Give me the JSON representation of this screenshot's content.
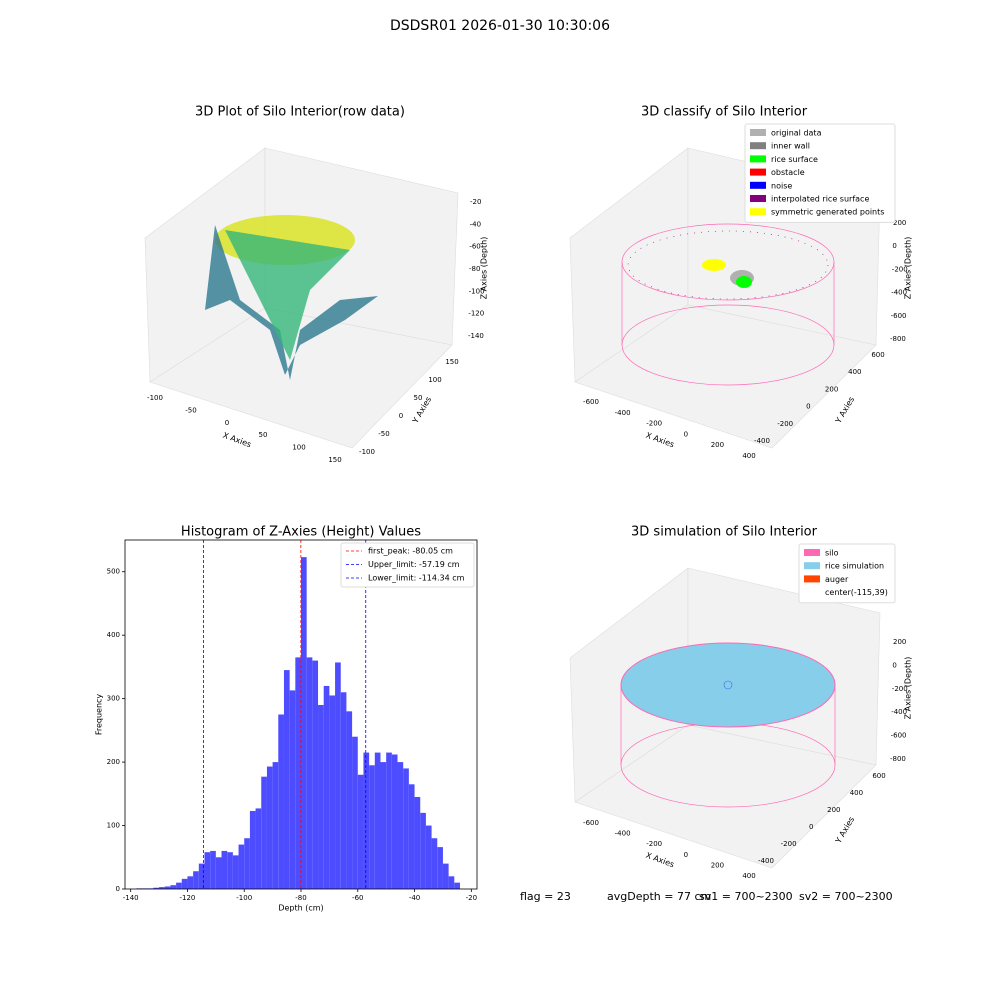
{
  "title": "DSDSR01 2026-01-30 10:30:06",
  "status": [
    "flag = 23",
    "avgDepth = 77 cm",
    "sv1 = 700~2300",
    "sv2 = 700~2300"
  ],
  "chart_data": [
    {
      "type": "scatter3d",
      "title": "3D Plot of Silo Interior(row data)",
      "xlabel": "X Axies",
      "ylabel": "Y Axies",
      "zlabel": "Z Axies (Depth)",
      "xlim": [
        -100,
        150
      ],
      "xticks": [
        -100,
        -50,
        0,
        50,
        100,
        150
      ],
      "ylim": [
        -100,
        150
      ],
      "yticks": [
        -100,
        -50,
        0,
        50,
        100,
        150
      ],
      "zlim": [
        -20,
        -140
      ],
      "zticks": [
        -20,
        -40,
        -60,
        -80,
        -100,
        -120,
        -140
      ]
    },
    {
      "type": "scatter3d",
      "title": "3D classify of Silo Interior",
      "xlabel": "X Axies",
      "ylabel": "Y Axies",
      "zlabel": "Z Axies (Depth)",
      "xlim": [
        -600,
        400
      ],
      "xticks": [
        -600,
        -400,
        -200,
        0,
        200,
        400
      ],
      "ylim": [
        -400,
        600
      ],
      "yticks": [
        -400,
        -200,
        0,
        200,
        400,
        600
      ],
      "zlim": [
        200,
        -800
      ],
      "zticks": [
        200,
        0,
        -200,
        -400,
        -600,
        -800
      ],
      "legend": [
        {
          "name": "original data",
          "color": "#b0b0b0"
        },
        {
          "name": "inner wall",
          "color": "#808080"
        },
        {
          "name": "rice surface",
          "color": "#00ff00"
        },
        {
          "name": "obstacle",
          "color": "#ff0000"
        },
        {
          "name": "noise",
          "color": "#0000ff"
        },
        {
          "name": "interpolated rice surface",
          "color": "#800080"
        },
        {
          "name": "symmetric generated points",
          "color": "#ffff00"
        }
      ]
    },
    {
      "type": "histogram",
      "title": "Histogram of Z-Axies (Height) Values",
      "xlabel": "Depth (cm)",
      "ylabel": "Frequency",
      "color": "#4d4dff",
      "xlim": [
        -142,
        -18
      ],
      "xticks": [
        -140,
        -120,
        -100,
        -80,
        -60,
        -40,
        -20
      ],
      "ylim": [
        0,
        550
      ],
      "yticks": [
        0,
        100,
        200,
        300,
        400,
        500
      ],
      "bins": [
        -138,
        -136,
        -134,
        -132,
        -130,
        -128,
        -126,
        -124,
        -122,
        -120,
        -118,
        -116,
        -114,
        -112,
        -110,
        -108,
        -106,
        -104,
        -102,
        -100,
        -98,
        -96,
        -94,
        -92,
        -90,
        -88,
        -86,
        -84,
        -82,
        -80,
        -78,
        -76,
        -74,
        -72,
        -70,
        -68,
        -66,
        -64,
        -62,
        -60,
        -58,
        -56,
        -54,
        -52,
        -50,
        -48,
        -46,
        -44,
        -42,
        -40,
        -38,
        -36,
        -34,
        -32,
        -30,
        -28,
        -26,
        -24
      ],
      "counts": [
        1,
        1,
        1,
        2,
        3,
        4,
        6,
        10,
        16,
        20,
        28,
        40,
        58,
        60,
        50,
        60,
        58,
        53,
        70,
        80,
        123,
        127,
        177,
        193,
        200,
        275,
        345,
        313,
        365,
        523,
        365,
        360,
        290,
        320,
        305,
        357,
        310,
        280,
        240,
        180,
        215,
        195,
        215,
        200,
        215,
        212,
        200,
        190,
        165,
        145,
        120,
        100,
        80,
        66,
        40,
        20,
        10
      ],
      "lines": [
        {
          "label": "first_peak: -80.05 cm",
          "value": -80.05,
          "color": "#ff0000"
        },
        {
          "label": "Upper_limit: -57.19 cm",
          "value": -57.19,
          "color": "#0000ff"
        },
        {
          "label": "Lower_limit: -114.34 cm",
          "value": -114.34,
          "color": "#0000ff"
        }
      ]
    },
    {
      "type": "scatter3d",
      "title": "3D simulation of Silo Interior",
      "xlabel": "X Axies",
      "ylabel": "Y Axies",
      "zlabel": "Z Axies (Depth)",
      "xlim": [
        -600,
        400
      ],
      "xticks": [
        -600,
        -400,
        -200,
        0,
        200,
        400
      ],
      "ylim": [
        -400,
        600
      ],
      "yticks": [
        -400,
        -200,
        0,
        200,
        400,
        600
      ],
      "zlim": [
        200,
        -800
      ],
      "zticks": [
        200,
        0,
        -200,
        -400,
        -600,
        -800
      ],
      "legend": [
        {
          "name": "silo",
          "color": "#ff69b4"
        },
        {
          "name": "rice simulation",
          "color": "#87ceeb"
        },
        {
          "name": "auger",
          "color": "#ff4500"
        },
        {
          "name": "center(-115,39)",
          "color": "none"
        }
      ]
    }
  ]
}
